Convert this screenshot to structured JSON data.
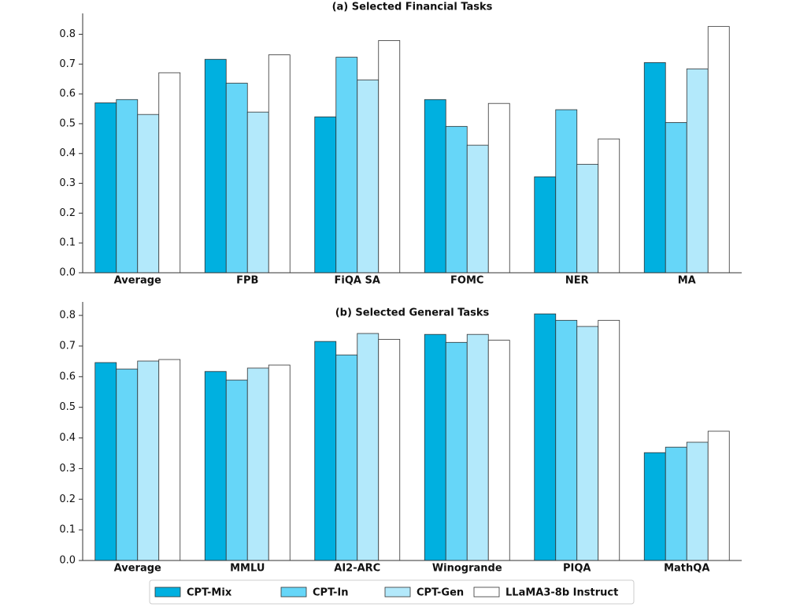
{
  "legend": [
    "CPT-Mix",
    "CPT-In",
    "CPT-Gen",
    "LLaMA3-8b Instruct"
  ],
  "chart_data": [
    {
      "type": "bar",
      "title": "(a) Selected Financial Tasks",
      "categories": [
        "Average",
        "FPB",
        "FiQA SA",
        "FOMC",
        "NER",
        "MA"
      ],
      "series": [
        {
          "color": "#00b0e0",
          "values": [
            0.57,
            0.716,
            0.523,
            0.581,
            0.322,
            0.705
          ]
        },
        {
          "color": "#66d6f8",
          "values": [
            0.581,
            0.636,
            0.723,
            0.491,
            0.547,
            0.504
          ]
        },
        {
          "color": "#b3e9fb",
          "values": [
            0.531,
            0.539,
            0.647,
            0.428,
            0.364,
            0.684
          ]
        },
        {
          "color": "#ffffff",
          "values": [
            0.671,
            0.731,
            0.779,
            0.568,
            0.449,
            0.826
          ]
        }
      ],
      "ylim": [
        0,
        0.87
      ],
      "yticks": [
        {
          "value": 0,
          "label": "0.0"
        },
        0.1,
        0.2,
        0.3,
        0.4,
        0.5,
        0.6,
        0.7,
        0.8
      ]
    },
    {
      "type": "bar",
      "title": "(b) Selected General Tasks",
      "categories": [
        "Average",
        "MMLU",
        "AI2-ARC",
        "Winogrande",
        "PIQA",
        "MathQA"
      ],
      "series": [
        {
          "color": "#00b0e0",
          "values": [
            0.646,
            0.617,
            0.715,
            0.738,
            0.805,
            0.352
          ]
        },
        {
          "color": "#66d6f8",
          "values": [
            0.625,
            0.589,
            0.671,
            0.712,
            0.784,
            0.37
          ]
        },
        {
          "color": "#b3e9fb",
          "values": [
            0.651,
            0.628,
            0.741,
            0.738,
            0.764,
            0.386
          ]
        },
        {
          "color": "#ffffff",
          "values": [
            0.656,
            0.638,
            0.722,
            0.719,
            0.784,
            0.422
          ]
        }
      ],
      "ylim": [
        0,
        0.844
      ],
      "yticks": [
        {
          "value": 0,
          "label": "0.0"
        },
        0.1,
        0.2,
        0.3,
        0.4,
        0.5,
        0.6,
        0.7,
        0.8
      ]
    }
  ]
}
